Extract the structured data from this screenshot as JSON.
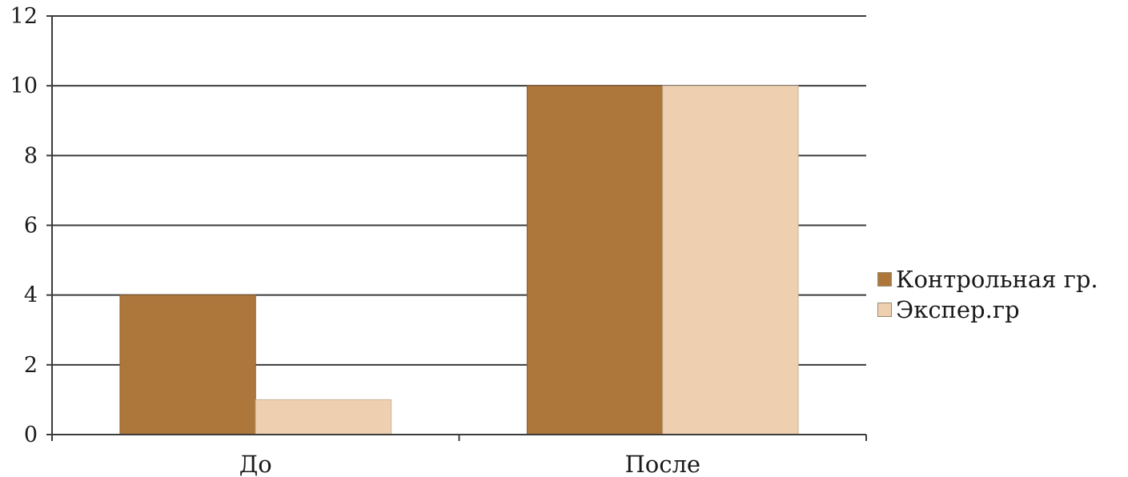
{
  "chart_data": {
    "type": "bar",
    "categories": [
      "До",
      "После"
    ],
    "series": [
      {
        "name": "Контрольная гр.",
        "values": [
          4,
          10
        ],
        "color": "#ad773c"
      },
      {
        "name": "Экспер.гр",
        "values": [
          1,
          10
        ],
        "color": "#eed0b0"
      }
    ],
    "ylim": [
      0,
      12
    ],
    "yticks": [
      "0",
      "2",
      "4",
      "6",
      "8",
      "10",
      "12"
    ],
    "grid": true,
    "legend_position": "right"
  }
}
